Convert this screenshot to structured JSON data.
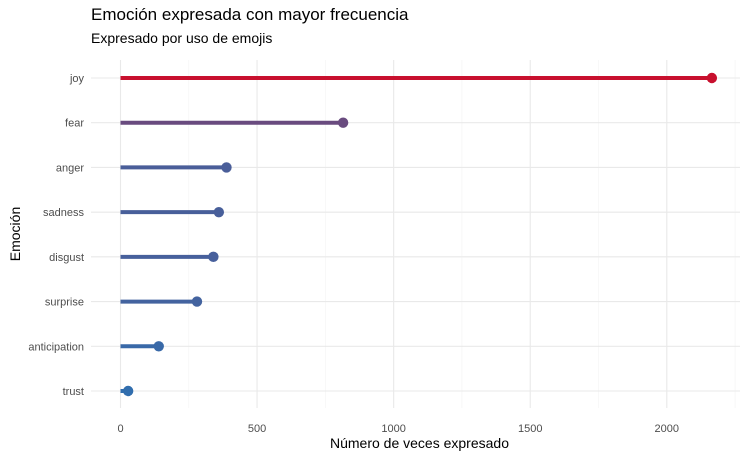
{
  "chart_data": {
    "type": "lollipop",
    "orientation": "horizontal",
    "title": "Emoción expresada con mayor frecuencia",
    "subtitle": "Expresado por uso de emojis",
    "xlabel": "Número de veces expresado",
    "ylabel": "Emoción",
    "xlim": [
      0,
      2250
    ],
    "x_ticks": [
      0,
      500,
      1000,
      1500,
      2000
    ],
    "x_tick_labels": [
      "0",
      "500",
      "1000",
      "1500",
      "2000"
    ],
    "categories": [
      "joy",
      "fear",
      "anger",
      "sadness",
      "disgust",
      "surprise",
      "anticipation",
      "trust"
    ],
    "values": [
      2165,
      815,
      388,
      360,
      340,
      280,
      140,
      28
    ],
    "color_scale": {
      "low": "#2f6fb0",
      "high": "#c8102e"
    },
    "grid": true,
    "legend": "none"
  }
}
